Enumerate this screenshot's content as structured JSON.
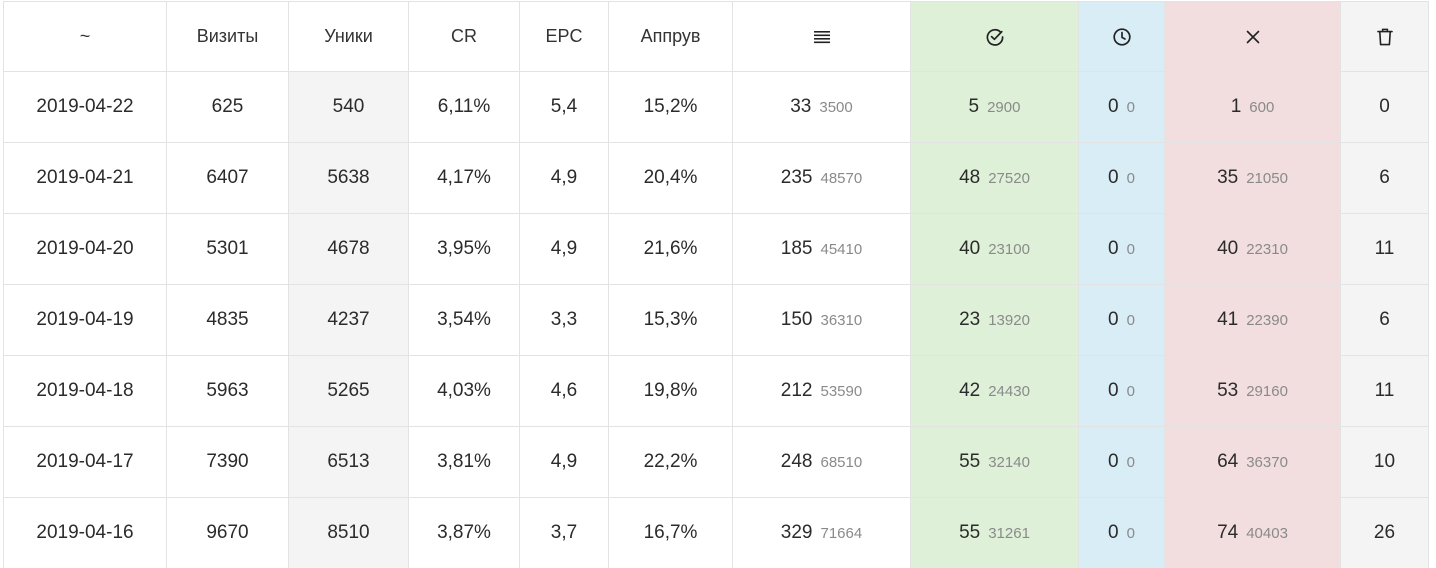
{
  "headers": {
    "date": "~",
    "visits": "Визиты",
    "uniques": "Уники",
    "cr": "CR",
    "epc": "EPC",
    "approve": "Аппрув"
  },
  "icons": {
    "total": "list-icon",
    "approved": "check-circle-icon",
    "hold": "clock-icon",
    "rejected": "close-icon",
    "trash": "trash-icon"
  },
  "colors": {
    "approved_bg": "#dff0d8",
    "hold_bg": "#d9edf7",
    "rejected_bg": "#f2dede",
    "neutral_bg": "#f4f4f4"
  },
  "rows": [
    {
      "date": "2019-04-22",
      "visits": "625",
      "uniques": "540",
      "cr": "6,11%",
      "epc": "5,4",
      "approve": "15,2%",
      "total": {
        "count": "33",
        "sum": "3500"
      },
      "approved": {
        "count": "5",
        "sum": "2900"
      },
      "hold": {
        "count": "0",
        "sum": "0"
      },
      "rejected": {
        "count": "1",
        "sum": "600"
      },
      "trash": "0"
    },
    {
      "date": "2019-04-21",
      "visits": "6407",
      "uniques": "5638",
      "cr": "4,17%",
      "epc": "4,9",
      "approve": "20,4%",
      "total": {
        "count": "235",
        "sum": "48570"
      },
      "approved": {
        "count": "48",
        "sum": "27520"
      },
      "hold": {
        "count": "0",
        "sum": "0"
      },
      "rejected": {
        "count": "35",
        "sum": "21050"
      },
      "trash": "6"
    },
    {
      "date": "2019-04-20",
      "visits": "5301",
      "uniques": "4678",
      "cr": "3,95%",
      "epc": "4,9",
      "approve": "21,6%",
      "total": {
        "count": "185",
        "sum": "45410"
      },
      "approved": {
        "count": "40",
        "sum": "23100"
      },
      "hold": {
        "count": "0",
        "sum": "0"
      },
      "rejected": {
        "count": "40",
        "sum": "22310"
      },
      "trash": "11"
    },
    {
      "date": "2019-04-19",
      "visits": "4835",
      "uniques": "4237",
      "cr": "3,54%",
      "epc": "3,3",
      "approve": "15,3%",
      "total": {
        "count": "150",
        "sum": "36310"
      },
      "approved": {
        "count": "23",
        "sum": "13920"
      },
      "hold": {
        "count": "0",
        "sum": "0"
      },
      "rejected": {
        "count": "41",
        "sum": "22390"
      },
      "trash": "6"
    },
    {
      "date": "2019-04-18",
      "visits": "5963",
      "uniques": "5265",
      "cr": "4,03%",
      "epc": "4,6",
      "approve": "19,8%",
      "total": {
        "count": "212",
        "sum": "53590"
      },
      "approved": {
        "count": "42",
        "sum": "24430"
      },
      "hold": {
        "count": "0",
        "sum": "0"
      },
      "rejected": {
        "count": "53",
        "sum": "29160"
      },
      "trash": "11"
    },
    {
      "date": "2019-04-17",
      "visits": "7390",
      "uniques": "6513",
      "cr": "3,81%",
      "epc": "4,9",
      "approve": "22,2%",
      "total": {
        "count": "248",
        "sum": "68510"
      },
      "approved": {
        "count": "55",
        "sum": "32140"
      },
      "hold": {
        "count": "0",
        "sum": "0"
      },
      "rejected": {
        "count": "64",
        "sum": "36370"
      },
      "trash": "10"
    },
    {
      "date": "2019-04-16",
      "visits": "9670",
      "uniques": "8510",
      "cr": "3,87%",
      "epc": "3,7",
      "approve": "16,7%",
      "total": {
        "count": "329",
        "sum": "71664"
      },
      "approved": {
        "count": "55",
        "sum": "31261"
      },
      "hold": {
        "count": "0",
        "sum": "0"
      },
      "rejected": {
        "count": "74",
        "sum": "40403"
      },
      "trash": "26"
    }
  ]
}
